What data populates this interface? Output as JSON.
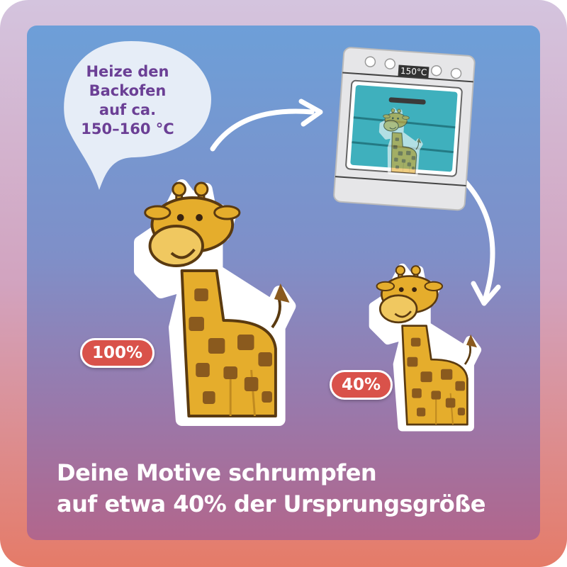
{
  "bubble": {
    "lines": [
      "Heize den",
      "Backofen",
      "auf ca.",
      "150–160 °C"
    ]
  },
  "oven": {
    "display": "150°C"
  },
  "badges": {
    "large": "100%",
    "small": "40%"
  },
  "caption": {
    "line1": "Deine Motive schrumpfen",
    "line2": "auf etwa 40% der Ursprungsgröße"
  },
  "colors": {
    "accent": "#d9524a",
    "text_purple": "#6b3f95",
    "giraffe": "#e5ad2c",
    "spots": "#8a5a1e"
  }
}
